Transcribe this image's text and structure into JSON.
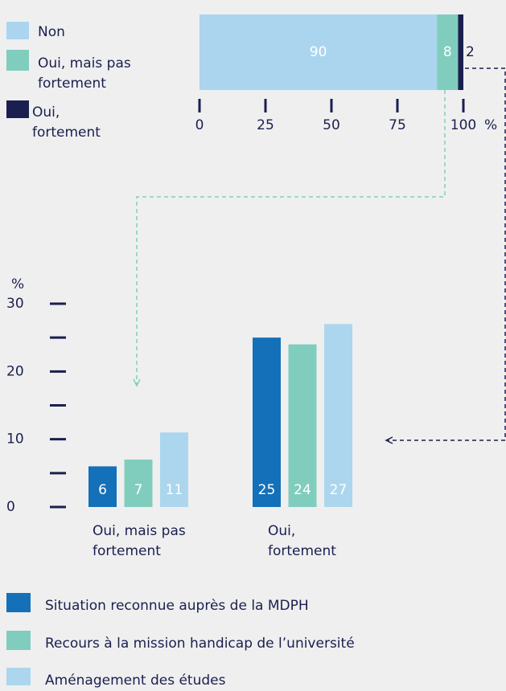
{
  "chart_data": [
    {
      "type": "stacked-barh",
      "categories": [
        null
      ],
      "series": [
        {
          "name": "Non",
          "color": "#abd5ee",
          "values": [
            90
          ]
        },
        {
          "name": "Oui, mais pas fortement",
          "color": "#80cdbd",
          "values": [
            8
          ]
        },
        {
          "name": "Oui, fortement",
          "color": "#1a1f4f",
          "values": [
            2
          ]
        }
      ],
      "xlim": [
        0,
        100
      ],
      "xticks": [
        0,
        25,
        50,
        75,
        100
      ],
      "xlabel": "%"
    },
    {
      "type": "bar",
      "categories": [
        "Oui, mais pas fortement",
        "Oui, fortement"
      ],
      "series": [
        {
          "name": "Situation reconnue auprès de la MDPH",
          "color": "#1470b8",
          "values": [
            6,
            25
          ]
        },
        {
          "name": "Recours à la mission handicap de l’université",
          "color": "#80cdbd",
          "values": [
            7,
            24
          ]
        },
        {
          "name": "Aménagement des études",
          "color": "#acd6ee",
          "values": [
            11,
            27
          ]
        }
      ],
      "ylim": [
        0,
        30
      ],
      "yticks": [
        0,
        10,
        20,
        30
      ],
      "minor_yticks": [
        5,
        15,
        25
      ],
      "ylabel": "%"
    }
  ]
}
